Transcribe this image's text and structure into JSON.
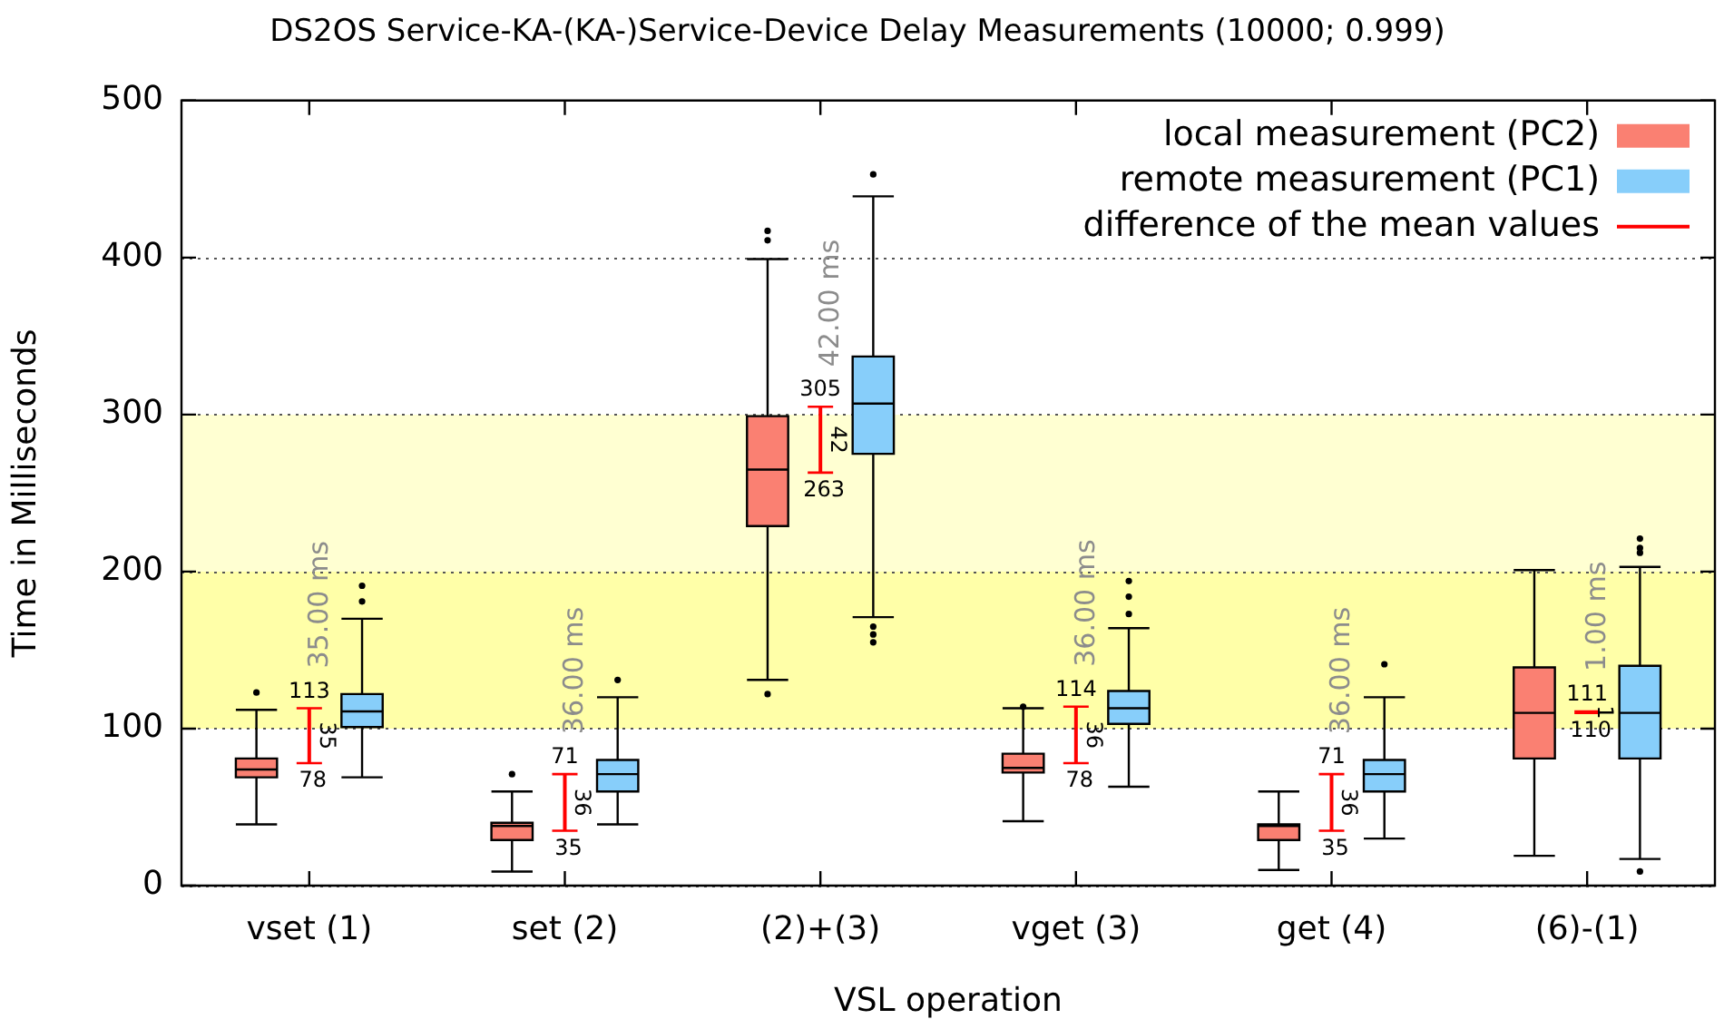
{
  "chart_data": {
    "type": "box",
    "title": "DS2OS Service-KA-(KA-)Service-Device Delay Measurements (10000; 0.999)",
    "xlabel": "VSL operation",
    "ylabel": "Time in Milliseconds",
    "categories": [
      "vset (1)",
      "set (2)",
      "(2)+(3)",
      "vget (3)",
      "get (4)",
      "(6)-(1)"
    ],
    "ylim": [
      0,
      500
    ],
    "yticks": [
      0,
      100,
      200,
      300,
      400,
      500
    ],
    "grid": "y",
    "legend": "top right",
    "bands": [
      {
        "axis": "y",
        "from": 100,
        "to": 200,
        "color": "#ffffa8"
      },
      {
        "axis": "y",
        "from": 200,
        "to": 300,
        "color": "#ffffd2"
      }
    ],
    "annotations": [
      {
        "text": "35.00 ms",
        "x": "vset (1)",
        "y": 113
      },
      {
        "text": "36.00 ms",
        "x": "set (2)",
        "y": 71
      },
      {
        "text": "42.00 ms",
        "x": "(2)+(3)",
        "y": 305
      },
      {
        "text": "36.00 ms",
        "x": "vget (3)",
        "y": 114
      },
      {
        "text": "36.00 ms",
        "x": "get (4)",
        "y": 71
      },
      {
        "text": "1.00 ms",
        "x": "(6)-(1)",
        "y": 111
      },
      {
        "text": "113",
        "x": "vset (1)",
        "y": 113
      },
      {
        "text": "71",
        "x": "set (2)",
        "y": 71
      },
      {
        "text": "305",
        "x": "(2)+(3)",
        "y": 305
      },
      {
        "text": "114",
        "x": "vget (3)",
        "y": 114
      },
      {
        "text": "71",
        "x": "get (4)",
        "y": 71
      },
      {
        "text": "111",
        "x": "(6)-(1)",
        "y": 111
      },
      {
        "text": "78",
        "x": "vset (1)",
        "y": 78
      },
      {
        "text": "35",
        "x": "set (2)",
        "y": 35
      },
      {
        "text": "263",
        "x": "(2)+(3)",
        "y": 263
      },
      {
        "text": "78",
        "x": "vget (3)",
        "y": 78
      },
      {
        "text": "35",
        "x": "get (4)",
        "y": 35
      },
      {
        "text": "110",
        "x": "(6)-(1)",
        "y": 110
      }
    ],
    "series": [
      {
        "name": "local measurement (PC2)",
        "type": "box",
        "color": "#fa8072",
        "boxes": [
          {
            "low": 39,
            "q1": 69,
            "median": 74,
            "q3": 81,
            "high": 112,
            "outliers": [
              123
            ]
          },
          {
            "low": 9,
            "q1": 29,
            "median": 38,
            "q3": 40,
            "high": 60,
            "outliers": [
              71
            ]
          },
          {
            "low": 131,
            "q1": 229,
            "median": 265,
            "q3": 299,
            "high": 399,
            "outliers": [
              122,
              411,
              417
            ]
          },
          {
            "low": 41,
            "q1": 72,
            "median": 75,
            "q3": 84,
            "high": 113,
            "outliers": [
              114
            ]
          },
          {
            "low": 10,
            "q1": 29,
            "median": 38,
            "q3": 39,
            "high": 60
          },
          {
            "low": 19,
            "q1": 81,
            "median": 110,
            "q3": 139,
            "high": 201
          }
        ]
      },
      {
        "name": "remote measurement (PC1)",
        "type": "box",
        "color": "#87cefa",
        "boxes": [
          {
            "low": 69,
            "q1": 101,
            "median": 111,
            "q3": 122,
            "high": 170,
            "outliers": [
              181,
              191
            ]
          },
          {
            "low": 39,
            "q1": 60,
            "median": 71,
            "q3": 80,
            "high": 120,
            "outliers": [
              131
            ]
          },
          {
            "low": 171,
            "q1": 275,
            "median": 307,
            "q3": 337,
            "high": 439,
            "outliers": [
              155,
              160,
              165,
              453
            ]
          },
          {
            "low": 63,
            "q1": 103,
            "median": 113,
            "q3": 124,
            "high": 164,
            "outliers": [
              173,
              184,
              194
            ]
          },
          {
            "low": 30,
            "q1": 60,
            "median": 71,
            "q3": 80,
            "high": 120,
            "outliers": [
              141
            ]
          },
          {
            "low": 17,
            "q1": 81,
            "median": 110,
            "q3": 140,
            "high": 203,
            "outliers": [
              9,
              212,
              215,
              221
            ]
          }
        ]
      },
      {
        "name": "difference of the mean values",
        "type": "bar",
        "color": "#ff0000",
        "base": [
          78,
          35,
          263,
          78,
          35,
          110
        ],
        "values": [
          35,
          36,
          42,
          36,
          36,
          1
        ],
        "value_labels": [
          "35",
          "36",
          "42",
          "36",
          "36",
          "1"
        ]
      }
    ]
  }
}
